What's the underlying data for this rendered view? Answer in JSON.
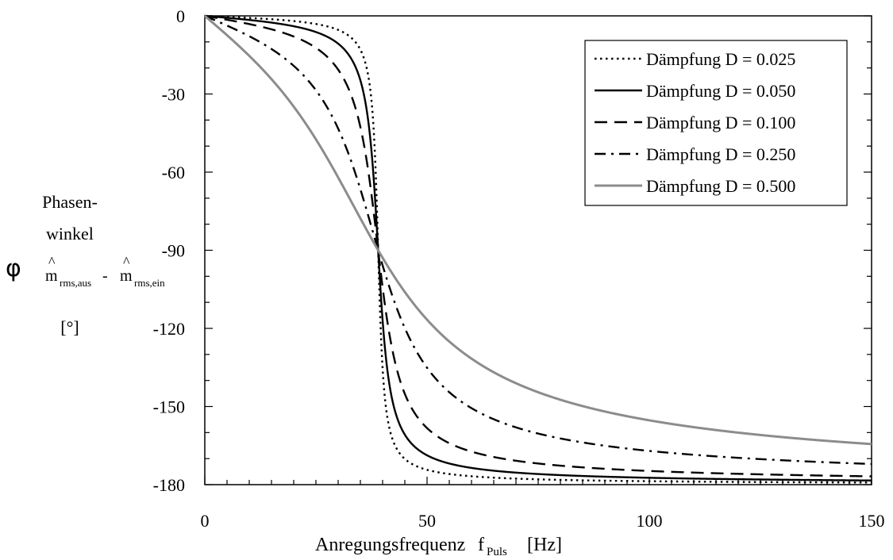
{
  "chart_data": {
    "type": "line",
    "title": "",
    "xlabel": {
      "main": "Anregungsfrequenz",
      "symbol": "f",
      "subscript": "Puls",
      "unit": "[Hz]"
    },
    "ylabel": {
      "line1": "Phasen-",
      "line2": "winkel",
      "symbol": "φ",
      "sub_a": "m",
      "sub_a_index": "rms,aus",
      "sub_sep": " - ",
      "sub_b": "m",
      "sub_b_index": "rms,ein",
      "hat": "^",
      "unit": "[°]"
    },
    "xlim": [
      0,
      150
    ],
    "ylim": [
      -180,
      0
    ],
    "x_ticks": [
      0,
      50,
      100,
      150
    ],
    "y_ticks": [
      0,
      -30,
      -60,
      -90,
      -120,
      -150,
      -180
    ],
    "resonance_frequency_hz": 39,
    "grid": false,
    "legend_position": "top-right",
    "series": [
      {
        "name": "Dämpfung D = 0.025",
        "damping": 0.025,
        "style": "dotted",
        "color": "#000000"
      },
      {
        "name": "Dämpfung D = 0.050",
        "damping": 0.05,
        "style": "solid",
        "color": "#000000"
      },
      {
        "name": "Dämpfung D = 0.100",
        "damping": 0.1,
        "style": "dashed",
        "color": "#000000"
      },
      {
        "name": "Dämpfung D = 0.250",
        "damping": 0.25,
        "style": "dash-dot",
        "color": "#000000"
      },
      {
        "name": "Dämpfung D = 0.500",
        "damping": 0.5,
        "style": "solid",
        "color": "#8c8c8c"
      }
    ]
  }
}
